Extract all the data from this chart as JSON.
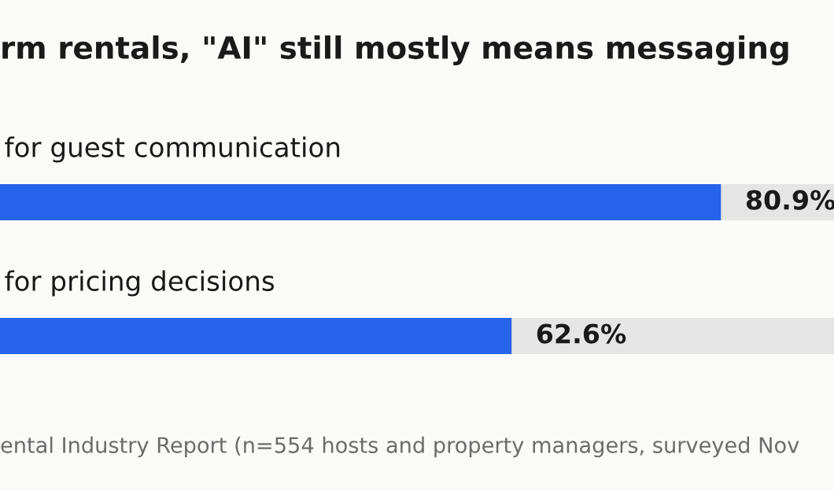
{
  "chart_data": {
    "type": "bar",
    "orientation": "horizontal",
    "title": "rm rentals, \"AI\" still mostly means messaging",
    "categories": [
      "for guest communication",
      "for pricing decisions"
    ],
    "values": [
      80.9,
      62.6
    ],
    "value_labels": [
      "80.9%",
      "62.6%"
    ],
    "color": "#2563eb",
    "xlim": [
      0,
      100
    ],
    "tick_labels": false,
    "annotations": [
      "ental Industry Report (n=554 hosts and property managers, surveyed Nov"
    ]
  }
}
